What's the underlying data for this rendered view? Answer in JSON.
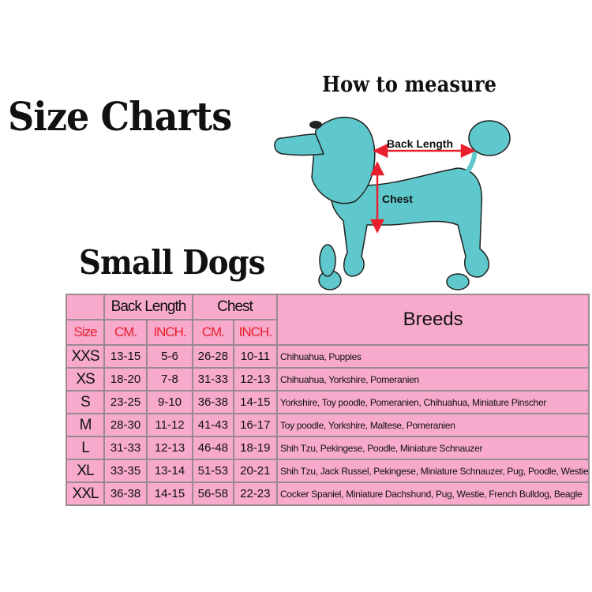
{
  "titles": {
    "main": "Size Charts",
    "sub": "Small Dogs",
    "measure": "How to measure"
  },
  "diagram": {
    "back_length": "Back Length",
    "chest": "Chest",
    "dog_color": "#5ec8cc",
    "arrow_color": "#e8202e"
  },
  "table": {
    "group_headers": {
      "back_length": "Back Length",
      "chest": "Chest",
      "breeds": "Breeds"
    },
    "sub_headers": {
      "size": "Size",
      "cm1": "CM.",
      "inch1": "INCH.",
      "cm2": "CM.",
      "inch2": "INCH."
    },
    "rows": [
      {
        "size": "XXS",
        "back_cm": "13-15",
        "back_in": "5-6",
        "chest_cm": "26-28",
        "chest_in": "10-11",
        "breeds": "Chihuahua, Puppies"
      },
      {
        "size": "XS",
        "back_cm": "18-20",
        "back_in": "7-8",
        "chest_cm": "31-33",
        "chest_in": "12-13",
        "breeds": "Chihuahua, Yorkshire, Pomeranien"
      },
      {
        "size": "S",
        "back_cm": "23-25",
        "back_in": "9-10",
        "chest_cm": "36-38",
        "chest_in": "14-15",
        "breeds": "Yorkshire, Toy poodle, Pomeranien, Chihuahua, Miniature Pinscher"
      },
      {
        "size": "M",
        "back_cm": "28-30",
        "back_in": "11-12",
        "chest_cm": "41-43",
        "chest_in": "16-17",
        "breeds": "Toy poodle, Yorkshire, Maltese, Pomeranien"
      },
      {
        "size": "L",
        "back_cm": "31-33",
        "back_in": "12-13",
        "chest_cm": "46-48",
        "chest_in": "18-19",
        "breeds": "Shih Tzu, Pekingese, Poodle, Miniature Schnauzer"
      },
      {
        "size": "XL",
        "back_cm": "33-35",
        "back_in": "13-14",
        "chest_cm": "51-53",
        "chest_in": "20-21",
        "breeds": "Shih Tzu, Jack Russel, Pekingese, Miniature Schnauzer, Pug, Poodle, Westie"
      },
      {
        "size": "XXL",
        "back_cm": "36-38",
        "back_in": "14-15",
        "chest_cm": "56-58",
        "chest_in": "22-23",
        "breeds": "Cocker Spaniel, Miniature Dachshund, Pug, Westie, French Bulldog, Beagle"
      }
    ],
    "colors": {
      "background": "#f7aacb",
      "header_red": "#e8202e"
    }
  }
}
